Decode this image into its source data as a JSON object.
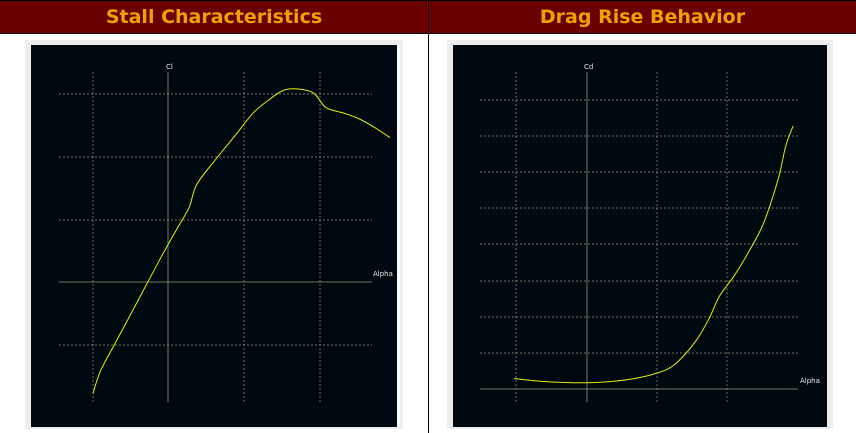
{
  "header": {
    "left_title": "Stall Characteristics",
    "right_title": "Drag Rise Behavior"
  },
  "chart_data": [
    {
      "type": "line",
      "title": "Stall Characteristics",
      "xlabel": "Alpha",
      "ylabel": "Cl",
      "grid": true,
      "xlim": [
        -4,
        16
      ],
      "ylim": [
        -0.9,
        1.6
      ],
      "series": [
        {
          "color": "#e4f000",
          "x": [
            -3.5,
            -3.0,
            -2.0,
            -1.0,
            0.0,
            1.0,
            2.0,
            2.8,
            3.3,
            4.5,
            5.8,
            7.0,
            8.0,
            9.0,
            10.0,
            11.0,
            11.8,
            13.0,
            14.0,
            15.0,
            16.0
          ],
          "y": [
            -0.78,
            -0.62,
            -0.42,
            -0.22,
            -0.02,
            0.18,
            0.37,
            0.52,
            0.68,
            0.85,
            1.02,
            1.18,
            1.27,
            1.34,
            1.35,
            1.32,
            1.22,
            1.18,
            1.14,
            1.08,
            1.01
          ]
        }
      ]
    },
    {
      "type": "line",
      "title": "Drag Rise Behavior",
      "xlabel": "Alpha",
      "ylabel": "Cd",
      "grid": true,
      "xlim": [
        -4,
        16
      ],
      "ylim": [
        0,
        0.8
      ],
      "series": [
        {
          "color": "#e4f000",
          "x": [
            -3.5,
            -2.0,
            0.0,
            2.0,
            4.0,
            5.5,
            7.0,
            8.0,
            9.0,
            9.8,
            10.5,
            11.5,
            12.5,
            13.5,
            14.5,
            15.0,
            15.5
          ],
          "y": [
            0.026,
            0.02,
            0.016,
            0.016,
            0.022,
            0.032,
            0.05,
            0.08,
            0.125,
            0.175,
            0.23,
            0.28,
            0.34,
            0.41,
            0.52,
            0.6,
            0.65
          ]
        }
      ]
    }
  ]
}
